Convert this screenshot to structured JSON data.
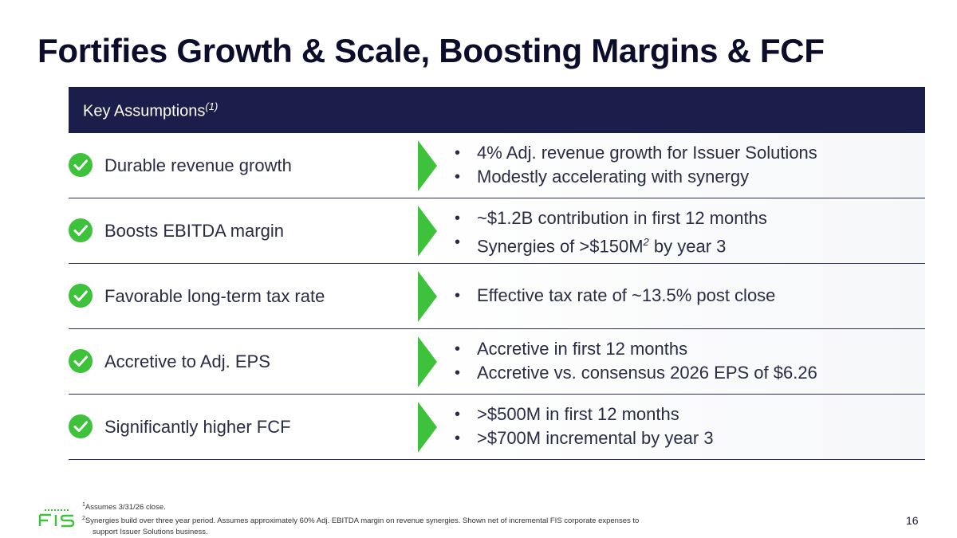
{
  "title": "Fortifies Growth & Scale, Boosting Margins & FCF",
  "header": {
    "label": "Key Assumptions",
    "label_sup": "(1)"
  },
  "rows": [
    {
      "label": "Durable revenue growth",
      "bullets": [
        "4% Adj. revenue growth for Issuer Solutions",
        "Modestly accelerating with synergy"
      ]
    },
    {
      "label": "Boosts EBITDA margin",
      "bullets": [
        "~$1.2B contribution in first 12 months"
      ],
      "bullet_with_sup": {
        "pre": "Synergies of >$150M",
        "sup": "2",
        "post": " by year 3"
      }
    },
    {
      "label": "Favorable long-term tax rate",
      "bullets": [
        "Effective tax rate of ~13.5% post close"
      ]
    },
    {
      "label": "Accretive to Adj. EPS",
      "bullets": [
        "Accretive in first 12 months",
        "Accretive vs. consensus 2026 EPS of $6.26"
      ]
    },
    {
      "label": "Significantly higher FCF",
      "bullets": [
        ">$500M in first 12 months",
        ">$700M incremental by year 3"
      ]
    }
  ],
  "footnotes": {
    "note1_mark": "1",
    "note1": "Assumes 3/31/26 close.",
    "note2_mark": "2",
    "note2_line1": "Synergies build over three year period. Assumes approximately 60% Adj. EBITDA margin on revenue synergies. Shown net of incremental FIS corporate expenses to",
    "note2_line2": "support Issuer Solutions business."
  },
  "brand": {
    "logo_text": "FIS",
    "accent": "#3ec23b",
    "header_bg": "#1b1d4a"
  },
  "page_number": "16"
}
